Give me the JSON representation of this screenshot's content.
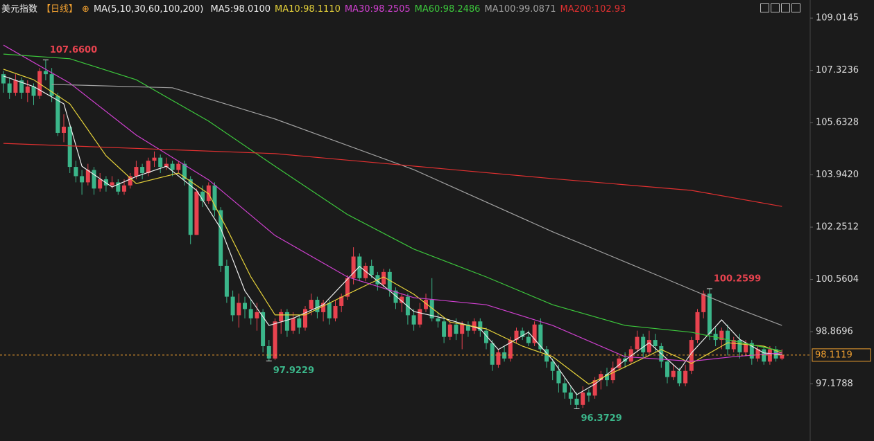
{
  "chart_data": {
    "type": "candlestick",
    "title": "美元指数",
    "period": "【日线】",
    "ma_label": "MA(5,10,30,60,100,200)",
    "up_color": "#e8434f",
    "down_color": "#3bb68a",
    "open": [
      107.2,
      106.9,
      106.6,
      107.0,
      106.6,
      106.8,
      106.5,
      107.3,
      107.2,
      106.5,
      105.3,
      105.5,
      104.2,
      103.9,
      103.7,
      104.1,
      103.5,
      103.8,
      103.6,
      103.7,
      103.4,
      103.6,
      103.9,
      104.2,
      104.0,
      104.4,
      104.5,
      104.2,
      104.3,
      104.1,
      104.3,
      103.8,
      102.0,
      103.4,
      103.1,
      103.6,
      102.8,
      101.0,
      100.0,
      99.4,
      99.8,
      99.6,
      99.3,
      99.5,
      98.4,
      98.0,
      99.2,
      99.5,
      98.9,
      99.3,
      99.0,
      99.6,
      99.9,
      99.5,
      99.8,
      99.3,
      99.7,
      100.0,
      100.6,
      101.3,
      100.6,
      101.0,
      100.7,
      100.4,
      100.8,
      100.2,
      99.8,
      100.0,
      99.4,
      99.1,
      99.6,
      99.9,
      99.3,
      99.2,
      98.7,
      99.1,
      98.8,
      99.1,
      98.9,
      99.2,
      98.9,
      98.5,
      97.8,
      98.2,
      98.0,
      98.6,
      98.9,
      98.7,
      98.5,
      99.1,
      98.3,
      97.9,
      97.6,
      97.2,
      96.9,
      96.7,
      96.5,
      96.9,
      96.8,
      97.3,
      97.5,
      97.3,
      97.7,
      98.0,
      97.9,
      98.3,
      98.7,
      98.2,
      98.6,
      98.4,
      97.9,
      97.4,
      97.6,
      97.2,
      97.6,
      98.6,
      99.5,
      100.1,
      98.8,
      98.6,
      98.9,
      98.3,
      98.6,
      98.2,
      98.5,
      98.0,
      98.3,
      97.9,
      98.3,
      98.0
    ],
    "high": [
      107.3,
      107.1,
      107.2,
      107.1,
      107.0,
      106.9,
      107.4,
      107.66,
      107.4,
      106.6,
      105.9,
      105.6,
      104.4,
      104.1,
      104.3,
      104.2,
      104.0,
      103.9,
      103.9,
      103.8,
      103.8,
      104.0,
      104.4,
      104.3,
      104.5,
      104.7,
      104.6,
      104.5,
      104.4,
      104.4,
      104.4,
      103.9,
      103.5,
      103.6,
      103.7,
      103.7,
      102.9,
      101.2,
      100.2,
      100.1,
      100.0,
      99.9,
      99.8,
      99.6,
      98.6,
      99.3,
      99.6,
      99.6,
      99.5,
      99.4,
      99.7,
      100.1,
      100.0,
      99.9,
      99.9,
      99.9,
      100.1,
      100.7,
      101.6,
      101.4,
      101.1,
      101.2,
      100.8,
      100.9,
      100.9,
      100.3,
      100.1,
      100.1,
      99.6,
      99.8,
      100.1,
      100.6,
      99.5,
      99.3,
      99.2,
      99.3,
      99.2,
      99.2,
      99.3,
      99.3,
      99.0,
      98.6,
      98.3,
      98.4,
      98.7,
      99.0,
      99.0,
      98.9,
      99.2,
      99.3,
      98.4,
      98.0,
      97.8,
      97.4,
      97.1,
      96.9,
      97.1,
      97.0,
      97.4,
      97.6,
      97.7,
      97.9,
      98.1,
      98.2,
      98.4,
      98.9,
      98.8,
      98.9,
      98.8,
      98.5,
      98.0,
      97.8,
      97.7,
      97.8,
      98.7,
      99.6,
      100.2,
      100.2599,
      99.0,
      99.0,
      99.1,
      98.7,
      98.8,
      98.6,
      98.6,
      98.4,
      98.4,
      98.4,
      98.4,
      98.3
    ],
    "low": [
      106.6,
      106.4,
      106.5,
      106.4,
      106.3,
      106.2,
      106.4,
      107.0,
      106.3,
      105.2,
      105.0,
      104.0,
      103.7,
      103.3,
      103.6,
      103.3,
      103.4,
      103.4,
      103.5,
      103.3,
      103.3,
      103.5,
      103.8,
      103.8,
      103.9,
      104.2,
      104.0,
      104.1,
      103.9,
      104.0,
      103.6,
      101.7,
      102.0,
      102.9,
      103.0,
      102.6,
      100.8,
      99.8,
      99.2,
      99.0,
      99.3,
      99.1,
      98.9,
      98.2,
      97.9229,
      97.95,
      98.8,
      98.7,
      98.8,
      98.8,
      98.9,
      99.4,
      99.3,
      99.2,
      99.1,
      99.2,
      99.5,
      99.9,
      100.4,
      100.5,
      100.5,
      100.6,
      100.2,
      100.3,
      100.0,
      99.6,
      99.5,
      99.1,
      98.9,
      99.0,
      99.5,
      99.2,
      99.0,
      98.5,
      98.6,
      98.6,
      98.3,
      98.7,
      98.8,
      98.7,
      98.3,
      97.6,
      97.7,
      97.9,
      97.9,
      98.5,
      98.6,
      98.4,
      98.4,
      98.2,
      97.7,
      97.3,
      96.9,
      96.7,
      96.5,
      96.3729,
      96.4,
      96.6,
      96.7,
      97.0,
      97.1,
      97.2,
      97.6,
      97.7,
      97.8,
      98.2,
      98.0,
      98.1,
      98.2,
      97.7,
      97.2,
      97.3,
      97.1,
      97.1,
      97.5,
      98.5,
      99.3,
      98.6,
      98.4,
      98.3,
      98.1,
      98.2,
      98.0,
      98.1,
      97.8,
      97.9,
      97.8,
      97.8,
      97.9,
      97.95
    ],
    "close": [
      106.9,
      106.6,
      107.0,
      106.6,
      106.8,
      106.5,
      107.3,
      107.2,
      106.5,
      105.3,
      105.5,
      104.2,
      103.9,
      103.7,
      104.1,
      103.5,
      103.8,
      103.6,
      103.7,
      103.4,
      103.6,
      103.9,
      104.2,
      104.0,
      104.4,
      104.5,
      104.2,
      104.3,
      104.1,
      104.3,
      103.8,
      102.0,
      103.4,
      103.1,
      103.6,
      102.8,
      101.0,
      100.0,
      99.4,
      99.8,
      99.6,
      99.3,
      99.5,
      98.4,
      98.0,
      99.2,
      99.5,
      98.9,
      99.3,
      99.0,
      99.6,
      99.9,
      99.5,
      99.8,
      99.3,
      99.7,
      100.0,
      100.6,
      101.3,
      100.6,
      101.0,
      100.7,
      100.4,
      100.8,
      100.2,
      99.8,
      100.0,
      99.4,
      99.1,
      99.6,
      99.9,
      99.3,
      99.2,
      98.7,
      99.1,
      98.8,
      99.1,
      98.9,
      99.2,
      98.9,
      98.5,
      97.8,
      98.2,
      98.0,
      98.6,
      98.9,
      98.7,
      98.5,
      99.1,
      98.3,
      97.9,
      97.6,
      97.2,
      96.9,
      96.7,
      96.5,
      96.9,
      96.8,
      97.3,
      97.5,
      97.3,
      97.7,
      98.0,
      97.9,
      98.3,
      98.7,
      98.2,
      98.6,
      98.4,
      97.9,
      97.4,
      97.6,
      97.2,
      97.6,
      98.6,
      99.5,
      100.1,
      98.8,
      98.6,
      98.9,
      98.3,
      98.6,
      98.2,
      98.5,
      98.0,
      98.3,
      97.9,
      98.3,
      98.0,
      98.1119
    ],
    "series": [
      {
        "name": "MA5:98.0100",
        "color": "#eeeeee",
        "x": [
          0,
          5,
          10,
          13,
          18,
          22,
          27,
          32,
          36,
          40,
          44,
          48,
          53,
          59,
          64,
          68,
          73,
          79,
          82,
          87,
          91,
          95,
          98,
          103,
          107,
          112,
          114,
          119,
          122,
          126,
          129
        ],
        "values": [
          107.14,
          106.8,
          106.24,
          104.22,
          103.55,
          103.89,
          104.22,
          103.44,
          102.21,
          100.19,
          99.07,
          99.3,
          99.74,
          100.98,
          100.19,
          99.52,
          99.3,
          98.96,
          98.29,
          98.85,
          97.95,
          96.83,
          97.17,
          97.95,
          98.51,
          97.62,
          98.18,
          99.25,
          98.62,
          98.18,
          98.13
        ]
      },
      {
        "name": "MA10:98.1110",
        "color": "#e6d23a",
        "x": [
          0,
          5,
          11,
          17,
          22,
          29,
          34,
          37,
          41,
          45,
          50,
          57,
          63,
          68,
          74,
          80,
          86,
          91,
          97,
          103,
          109,
          114,
          120,
          126,
          129
        ],
        "values": [
          107.36,
          107.02,
          106.24,
          104.56,
          103.66,
          104.0,
          103.33,
          102.21,
          100.64,
          99.41,
          99.41,
          100.08,
          100.64,
          100.08,
          99.18,
          98.96,
          98.4,
          98.06,
          97.17,
          97.73,
          98.29,
          97.84,
          98.51,
          98.4,
          98.18
        ]
      },
      {
        "name": "MA30:98.2505",
        "color": "#d040d0",
        "x": [
          0,
          11,
          22,
          34,
          45,
          57,
          68,
          80,
          91,
          103,
          114,
          121,
          129
        ],
        "values": [
          108.14,
          106.91,
          105.23,
          103.78,
          101.98,
          100.64,
          99.97,
          99.74,
          99.07,
          98.06,
          97.91,
          98.06,
          98.18
        ]
      },
      {
        "name": "MA60:98.2486",
        "color": "#3cc83c",
        "x": [
          0,
          11,
          22,
          34,
          45,
          57,
          68,
          80,
          91,
          103,
          114,
          129
        ],
        "values": [
          107.85,
          107.7,
          107.02,
          105.68,
          104.22,
          102.66,
          101.54,
          100.64,
          99.74,
          99.07,
          98.85,
          98.24
        ]
      },
      {
        "name": "MA100:99.0871",
        "color": "#a0a0a0",
        "x": [
          8,
          28,
          45,
          68,
          91,
          109,
          120,
          129
        ],
        "values": [
          106.87,
          106.76,
          105.75,
          104.11,
          102.1,
          100.64,
          99.74,
          99.07
        ]
      },
      {
        "name": "MA200:102.93",
        "color": "#e03030",
        "x": [
          0,
          45,
          91,
          114,
          129
        ],
        "values": [
          104.96,
          104.63,
          103.82,
          103.44,
          102.92
        ]
      }
    ],
    "annotations": [
      {
        "value": 107.66,
        "label": "107.6600",
        "color": "#e8434f"
      },
      {
        "value": 97.9229,
        "label": "97.9229",
        "color": "#3bb68a"
      },
      {
        "value": 96.3729,
        "label": "96.3729",
        "color": "#3bb68a"
      },
      {
        "value": 100.2599,
        "label": "100.2599",
        "color": "#e8434f"
      }
    ],
    "last_price": 98.1119,
    "last_color": "#f0a030",
    "ylim": [
      95.6,
      109.6
    ],
    "yticks": [
      109.0145,
      107.3236,
      105.6328,
      {
        "value": 103.942,
        "label": "103.9420"
      },
      102.2512,
      100.5604,
      98.8696,
      97.1788
    ],
    "grid": false
  }
}
